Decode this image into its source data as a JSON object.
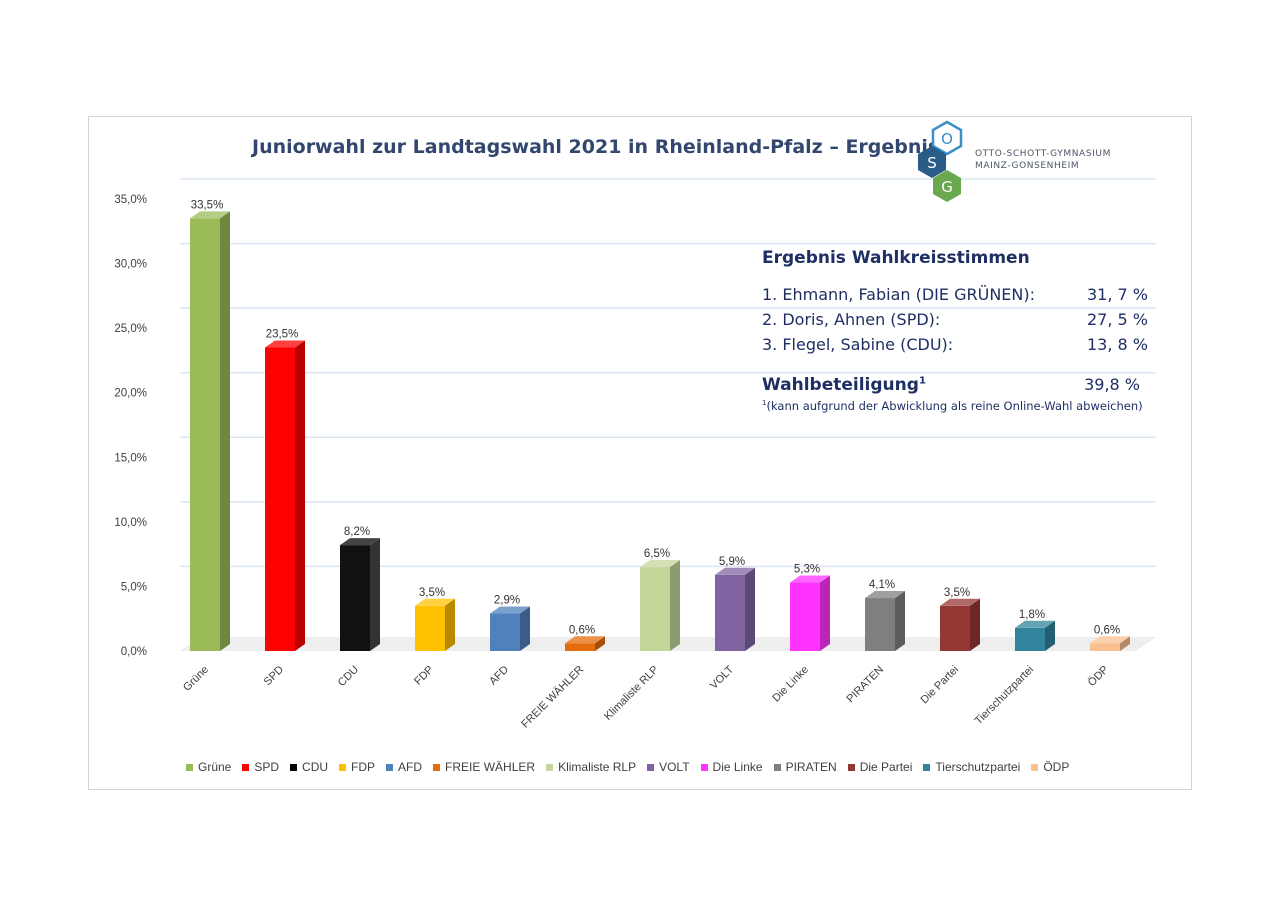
{
  "logo": {
    "letters": [
      "O",
      "S",
      "G"
    ],
    "line1": "OTTO-SCHOTT-GYMNASIUM",
    "line2": "MAINZ-GONSENHEIM"
  },
  "results": {
    "heading": "Ergebnis Wahlkreisstimmen",
    "rows": [
      {
        "label": "1. Ehmann, Fabian (DIE GRÜNEN):",
        "value": "31, 7 %"
      },
      {
        "label": "2. Doris, Ahnen (SPD):",
        "value": "27, 5 %"
      },
      {
        "label": "3. Flegel, Sabine (CDU):",
        "value": "13, 8 %"
      }
    ],
    "turnout_label": "Wahlbeteiligung",
    "turnout_sup": "1",
    "turnout_value": "39,8 %",
    "footnote_sup": "1",
    "footnote": "(kann aufgrund der Abwicklung als reine Online-Wahl abweichen)"
  },
  "chart_data": {
    "type": "bar",
    "title": "Juniorwahl zur Landtagswahl 2021 in Rheinland-Pfalz – Ergebnis",
    "categories": [
      "Grüne",
      "SPD",
      "CDU",
      "FDP",
      "AFD",
      "FREIE WÄHLER",
      "Klimaliste RLP",
      "VOLT",
      "Die Linke",
      "PIRATEN",
      "Die Partei",
      "Tierschutzpartei",
      "ÖDP"
    ],
    "values": [
      33.5,
      23.5,
      8.2,
      3.5,
      2.9,
      0.6,
      6.5,
      5.9,
      5.3,
      4.1,
      3.5,
      1.8,
      0.6
    ],
    "value_labels": [
      "33,5%",
      "23,5%",
      "8,2%",
      "3,5%",
      "2,9%",
      "0,6%",
      "6,5%",
      "5,9%",
      "5,3%",
      "4,1%",
      "3,5%",
      "1,8%",
      "0,6%"
    ],
    "colors": [
      "#9bbb59",
      "#ff0000",
      "#000000",
      "#ffc000",
      "#4f81bd",
      "#e46c0a",
      "#c4d79b",
      "#8064a2",
      "#ff33ff",
      "#7f7f7f",
      "#953735",
      "#31849b",
      "#fac090"
    ],
    "ylim": [
      0,
      35
    ],
    "yticks": [
      0,
      5,
      10,
      15,
      20,
      25,
      30,
      35
    ],
    "ytick_labels": [
      "0,0%",
      "5,0%",
      "10,0%",
      "15,0%",
      "20,0%",
      "25,0%",
      "30,0%",
      "35,0%"
    ],
    "grid": true,
    "legend_position": "bottom"
  }
}
